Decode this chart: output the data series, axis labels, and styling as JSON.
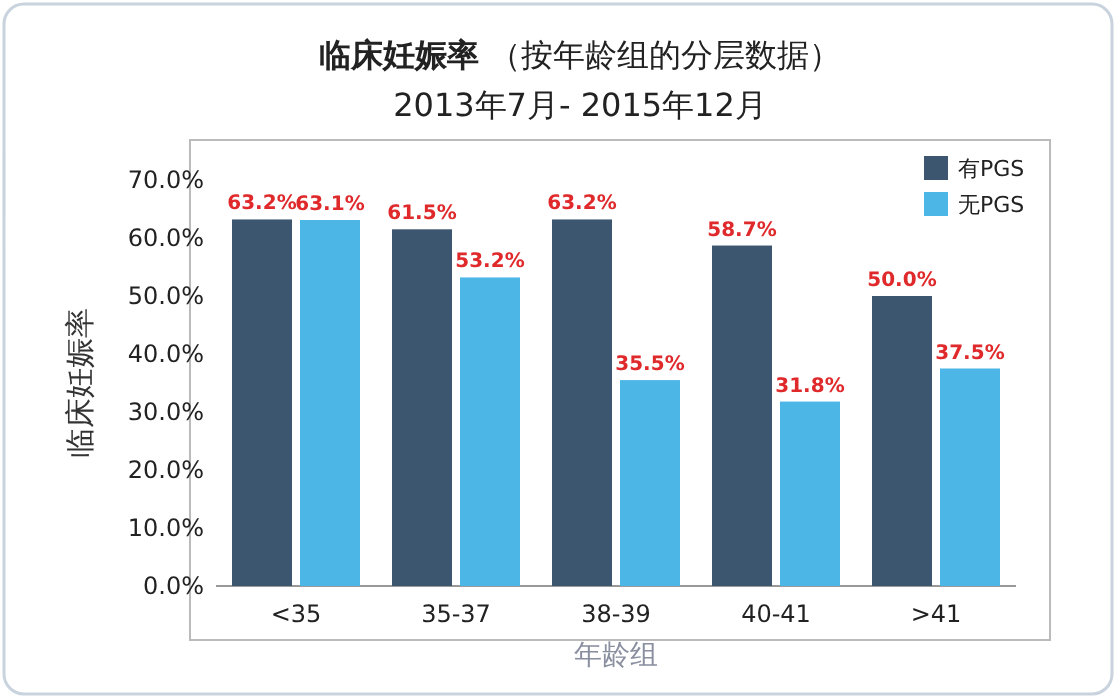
{
  "chart_data": {
    "type": "bar",
    "title": "**临床妊娠率** （按年龄组的分层数据）",
    "subtitle": "2013年7月- 2015年12月",
    "xlabel": "年龄组",
    "ylabel": "临床妊娠率",
    "categories": [
      "<35",
      "35-37",
      "38-39",
      "40-41",
      ">41"
    ],
    "series": [
      {
        "name": "有PGS",
        "color": "#3d5670",
        "values": [
          63.2,
          61.5,
          63.2,
          58.7,
          50.0
        ],
        "value_labels": [
          "63.2%",
          "61.5%",
          "63.2%",
          "58.7%",
          "50.0%"
        ]
      },
      {
        "name": "无PGS",
        "color": "#4cb6e6",
        "values": [
          63.1,
          53.2,
          35.5,
          31.8,
          37.5
        ],
        "value_labels": [
          "63.1%",
          "53.2%",
          "35.5%",
          "31.8%",
          "37.5%"
        ]
      }
    ],
    "ylim": [
      0,
      70
    ],
    "yticks": [
      {
        "value": 0,
        "label": "0.0%"
      },
      {
        "value": 10,
        "label": "10.0%"
      },
      {
        "value": 20,
        "label": "20.0%"
      },
      {
        "value": 30,
        "label": "30.0%"
      },
      {
        "value": 40,
        "label": "40.0%"
      },
      {
        "value": 50,
        "label": "50.0%"
      },
      {
        "value": 60,
        "label": "60.0%"
      },
      {
        "value": 70,
        "label": "70.0%"
      }
    ],
    "legend": "top right",
    "grid": false
  }
}
